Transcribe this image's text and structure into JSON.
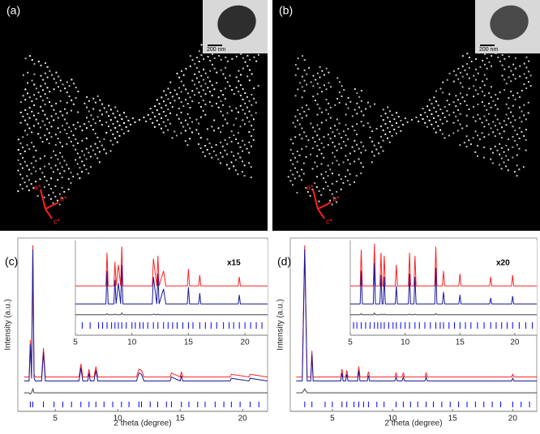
{
  "images": [
    {
      "label": "(a)",
      "scale_bar": "200 nm",
      "axes": [
        "a*",
        "b*",
        "c*"
      ]
    },
    {
      "label": "(b)",
      "scale_bar": "200 nm",
      "axes": [
        "a*",
        "b*",
        "c*"
      ]
    }
  ],
  "chart_data": [
    {
      "type": "line",
      "label": "(c)",
      "xlabel": "2 theta (degree)",
      "ylabel": "Intensity (a.u.)",
      "xlim": [
        2,
        22
      ],
      "ylim": [
        -12,
        106
      ],
      "xticks": [
        5,
        10,
        15,
        20
      ],
      "x": [
        2.5,
        2.9,
        3.0,
        3.1,
        3.2,
        3.3,
        3.4,
        3.9,
        4.05,
        4.2,
        6.9,
        7.05,
        7.2,
        7.6,
        7.7,
        7.8,
        8.1,
        8.25,
        8.4,
        11.5,
        11.7,
        11.9,
        12.1,
        14.2,
        14.3,
        15.0,
        15.1,
        15.2,
        19.0,
        19.1,
        20.5,
        20.6,
        22
      ],
      "series": [
        {
          "color": "#ff2020",
          "values": [
            3,
            3,
            31,
            5,
            103,
            5,
            3,
            3,
            25,
            3,
            3,
            13,
            3,
            3,
            9,
            3,
            3,
            11,
            3,
            3,
            9,
            8,
            3,
            3,
            6,
            3,
            7,
            3,
            3,
            5,
            3,
            5,
            3
          ]
        },
        {
          "color": "#1a1a9a",
          "values": [
            0,
            0,
            28,
            2,
            100,
            2,
            0,
            0,
            22,
            0,
            0,
            10,
            0,
            0,
            6,
            0,
            0,
            8,
            0,
            0,
            6,
            5,
            0,
            0,
            3,
            0,
            4,
            0,
            0,
            2,
            0,
            2,
            0
          ]
        },
        {
          "color": "#444444",
          "values": [
            -9,
            -9,
            -10,
            -9,
            -6,
            -9,
            -9,
            -9,
            -9,
            -9,
            -9,
            -9,
            -9,
            -9,
            -9,
            -9,
            -9,
            -9,
            -9,
            -9,
            -9,
            -9,
            -9,
            -9,
            -9,
            -9,
            -9,
            -9,
            -9,
            -9,
            -9,
            -9,
            -9
          ]
        }
      ],
      "reflections": {
        "color": "#0000ff",
        "x": [
          3.0,
          3.2,
          4.05,
          4.9,
          5.6,
          6.3,
          7.05,
          7.7,
          8.25,
          8.9,
          9.6,
          10.3,
          10.9,
          11.7,
          11.9,
          12.6,
          13.2,
          13.9,
          14.3,
          15.1,
          15.7,
          16.4,
          17.0,
          17.8,
          18.5,
          19.1,
          19.8,
          20.6,
          21.3
        ]
      }
    },
    {
      "type": "line",
      "annotation": "x15",
      "xlim": [
        5,
        22
      ],
      "ylim": [
        -25,
        100
      ],
      "xticks": [
        5,
        10,
        15,
        20
      ],
      "x": [
        5,
        7.7,
        7.8,
        7.9,
        8.4,
        8.5,
        8.6,
        8.8,
        9.0,
        9.1,
        9.2,
        11.8,
        11.9,
        12.2,
        12.3,
        12.4,
        12.8,
        13.0,
        14.9,
        15.0,
        15.1,
        15.9,
        16.0,
        16.1,
        19.4,
        19.5,
        19.6,
        22
      ],
      "series": [
        {
          "color": "#ff2020",
          "values": [
            30,
            30,
            85,
            30,
            30,
            70,
            30,
            65,
            30,
            95,
            30,
            30,
            75,
            30,
            80,
            30,
            55,
            30,
            30,
            58,
            30,
            30,
            48,
            30,
            30,
            45,
            30,
            30
          ]
        },
        {
          "color": "#1a1a9a",
          "values": [
            0,
            0,
            55,
            0,
            0,
            40,
            0,
            35,
            0,
            65,
            0,
            0,
            45,
            0,
            50,
            0,
            25,
            0,
            0,
            28,
            0,
            0,
            18,
            0,
            0,
            15,
            0,
            0
          ]
        },
        {
          "color": "#444444",
          "values": [
            -18,
            -18,
            -16,
            -18,
            -18,
            -17,
            -18,
            -18,
            -18,
            -15,
            -18,
            -18,
            -17,
            -18,
            -17,
            -18,
            -18,
            -18,
            -18,
            -18,
            -18,
            -18,
            -18,
            -18,
            -18,
            -18,
            -18,
            -18
          ]
        }
      ],
      "reflections": {
        "color": "#0000ff",
        "x": [
          5.6,
          6.3,
          7.05,
          7.4,
          7.8,
          8.2,
          8.5,
          8.8,
          9.1,
          9.5,
          10.0,
          10.3,
          10.7,
          11.0,
          11.4,
          11.9,
          12.3,
          12.8,
          13.2,
          13.6,
          14.0,
          14.5,
          15.0,
          15.4,
          16.0,
          16.5,
          17.0,
          17.5,
          18.1,
          18.6,
          19.0,
          19.5,
          20.0,
          20.5,
          21.0,
          21.5
        ]
      }
    },
    {
      "type": "line",
      "label": "(d)",
      "xlabel": "2 theta (degree)",
      "ylabel": "Intensity (a.u.)",
      "xlim": [
        1.5,
        22
      ],
      "ylim": [
        -12,
        106
      ],
      "xticks": [
        5,
        10,
        15,
        20
      ],
      "x": [
        2.0,
        2.5,
        2.7,
        2.9,
        3.2,
        3.3,
        3.4,
        5.7,
        5.8,
        5.9,
        6.1,
        6.2,
        6.3,
        7.1,
        7.2,
        7.3,
        7.9,
        8.0,
        8.1,
        10.2,
        10.3,
        10.4,
        10.8,
        10.9,
        11.0,
        12.7,
        12.8,
        12.9,
        19.9,
        20.0,
        20.1,
        22
      ],
      "series": [
        {
          "color": "#ff2020",
          "values": [
            3,
            3,
            103,
            3,
            3,
            23,
            3,
            3,
            9,
            3,
            3,
            8,
            3,
            3,
            11,
            3,
            3,
            7,
            3,
            3,
            6,
            3,
            3,
            6,
            3,
            3,
            6,
            3,
            3,
            5,
            3,
            3
          ]
        },
        {
          "color": "#1a1a9a",
          "values": [
            0,
            0,
            100,
            0,
            0,
            20,
            0,
            0,
            6,
            0,
            0,
            5,
            0,
            0,
            8,
            0,
            0,
            4,
            0,
            0,
            3,
            0,
            0,
            3,
            0,
            0,
            3,
            0,
            0,
            2,
            0,
            0
          ]
        },
        {
          "color": "#444444",
          "values": [
            -9,
            -9,
            -6,
            -9,
            -9,
            -9,
            -9,
            -9,
            -9,
            -9,
            -9,
            -9,
            -9,
            -9,
            -9,
            -9,
            -9,
            -9,
            -9,
            -9,
            -9,
            -9,
            -9,
            -9,
            -9,
            -9,
            -9,
            -9,
            -9,
            -9,
            -9,
            -9
          ]
        }
      ],
      "reflections": {
        "color": "#0000ff",
        "x": [
          2.7,
          3.3,
          4.4,
          5.0,
          5.8,
          6.2,
          6.8,
          7.2,
          7.6,
          8.0,
          8.7,
          9.3,
          10.3,
          10.9,
          11.5,
          12.1,
          12.8,
          13.4,
          14.1,
          14.8,
          15.5,
          16.2,
          16.9,
          17.6,
          18.3,
          19.0,
          20.0,
          20.7,
          21.4
        ]
      }
    },
    {
      "type": "line",
      "annotation": "x20",
      "xlim": [
        5,
        22
      ],
      "ylim": [
        -25,
        100
      ],
      "xticks": [
        5,
        10,
        15,
        20
      ],
      "x": [
        5,
        5.9,
        6.0,
        6.1,
        7.1,
        7.2,
        7.3,
        7.7,
        7.8,
        7.9,
        8.0,
        8.1,
        8.2,
        9.1,
        9.2,
        9.3,
        10.3,
        10.4,
        10.5,
        10.8,
        10.9,
        11.0,
        12.7,
        12.8,
        12.9,
        13.4,
        13.5,
        13.6,
        14.9,
        15.0,
        15.1,
        17.7,
        17.8,
        17.9,
        19.7,
        19.8,
        19.9,
        22
      ],
      "series": [
        {
          "color": "#ff2020",
          "values": [
            30,
            30,
            90,
            30,
            30,
            100,
            30,
            30,
            85,
            30,
            30,
            80,
            30,
            30,
            65,
            30,
            30,
            85,
            30,
            30,
            80,
            30,
            30,
            95,
            30,
            30,
            55,
            30,
            30,
            50,
            30,
            30,
            45,
            30,
            30,
            48,
            30,
            30
          ]
        },
        {
          "color": "#1a1a9a",
          "values": [
            0,
            0,
            55,
            0,
            0,
            68,
            0,
            0,
            48,
            0,
            0,
            45,
            0,
            0,
            30,
            0,
            0,
            50,
            0,
            0,
            45,
            0,
            0,
            60,
            0,
            0,
            20,
            0,
            0,
            15,
            0,
            0,
            10,
            0,
            0,
            13,
            0,
            0
          ]
        },
        {
          "color": "#444444",
          "values": [
            -18,
            -18,
            -16,
            -18,
            -18,
            -15,
            -18,
            -18,
            -17,
            -18,
            -18,
            -17,
            -18,
            -18,
            -18,
            -18,
            -18,
            -17,
            -18,
            -18,
            -17,
            -18,
            -18,
            -16,
            -18,
            -18,
            -18,
            -18,
            -18,
            -18,
            -18,
            -18,
            -18,
            -18,
            -18,
            -18,
            -18,
            -18
          ]
        }
      ],
      "reflections": {
        "color": "#0000ff",
        "x": [
          5.3,
          5.6,
          6.0,
          6.4,
          6.8,
          7.2,
          7.5,
          7.8,
          8.1,
          8.5,
          8.9,
          9.2,
          9.6,
          10.0,
          10.4,
          10.9,
          11.3,
          11.8,
          12.3,
          12.8,
          13.2,
          13.5,
          14.0,
          14.5,
          15.0,
          15.5,
          16.0,
          16.6,
          17.2,
          17.8,
          18.3,
          18.8,
          19.3,
          19.8,
          20.4,
          21.0,
          21.6
        ]
      }
    }
  ]
}
